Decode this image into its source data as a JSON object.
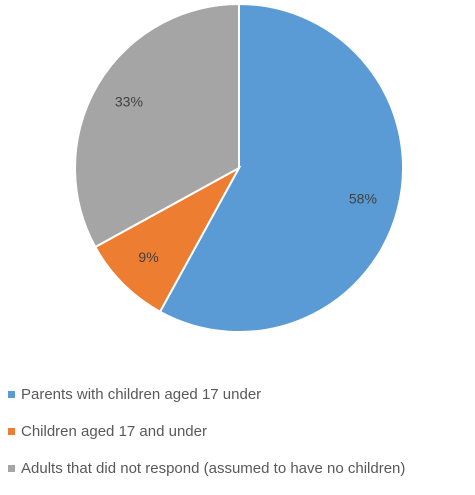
{
  "chart_data": {
    "type": "pie",
    "title": "",
    "slices": [
      {
        "label": "Parents with children aged 17 under",
        "value": 58,
        "display": "58%",
        "color": "#5b9bd5"
      },
      {
        "label": "Children aged 17 and under",
        "value": 9,
        "display": "9%",
        "color": "#ed7d31"
      },
      {
        "label": "Adults that did not respond (assumed to have no children)",
        "value": 33,
        "display": "33%",
        "color": "#a5a5a5"
      }
    ],
    "start_angle_deg": 0,
    "direction": "clockwise",
    "legend_position": "bottom-left"
  }
}
